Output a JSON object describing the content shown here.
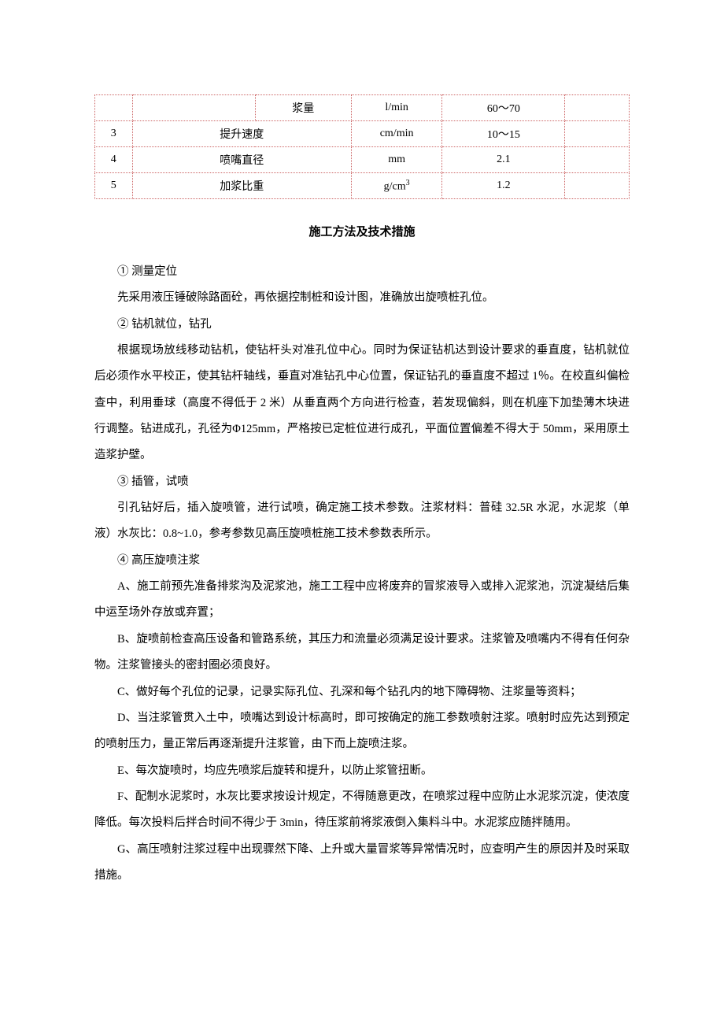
{
  "table": {
    "rows": [
      {
        "seq": "",
        "name": "",
        "sub": "浆量",
        "unit": "l/min",
        "value": "60～70",
        "note": ""
      },
      {
        "seq": "3",
        "name": "提升速度",
        "sub": "",
        "unit": "cm/min",
        "value": "10～15",
        "note": ""
      },
      {
        "seq": "4",
        "name": "喷嘴直径",
        "sub": "",
        "unit": "mm",
        "value": "2.1",
        "note": ""
      },
      {
        "seq": "5",
        "name": "加浆比重",
        "sub": "",
        "unit": "g/cm³",
        "value": "1.2",
        "note": ""
      }
    ],
    "border_color": "#cc6666",
    "col_widths_pct": [
      7,
      23,
      18,
      17,
      23,
      12
    ],
    "font_size_pt": 10.5
  },
  "section_title": "施工方法及技术措施",
  "paragraphs": [
    "① 测量定位",
    "先采用液压锤破除路面砼，再依据控制桩和设计图，准确放出旋喷桩孔位。",
    "② 钻机就位，钻孔",
    "根据现场放线移动钻机，使钻杆头对准孔位中心。同时为保证钻机达到设计要求的垂直度，钻机就位后必须作水平校正，使其钻杆轴线，垂直对准钻孔中心位置，保证钻孔的垂直度不超过 1％。在校直纠偏检查中，利用垂球（高度不得低于 2 米）从垂直两个方向进行检查，若发现偏斜，则在机座下加垫薄木块进行调整。钻进成孔，孔径为Φ125mm，严格按已定桩位进行成孔，平面位置偏差不得大于 50mm，采用原土造浆护壁。",
    "③ 插管，试喷",
    "引孔钻好后，插入旋喷管，进行试喷，确定施工技术参数。注浆材料：普硅 32.5R 水泥，水泥浆（单液）水灰比：0.8~1.0，参考参数见高压旋喷桩施工技术参数表所示。",
    "④ 高压旋喷注浆",
    "A、施工前预先准备排浆沟及泥浆池，施工工程中应将废弃的冒浆液导入或排入泥浆池，沉淀凝结后集中运至场外存放或弃置；",
    "B、旋喷前检查高压设备和管路系统，其压力和流量必须满足设计要求。注浆管及喷嘴内不得有任何杂物。注浆管接头的密封圈必须良好。",
    "C、做好每个孔位的记录，记录实际孔位、孔深和每个钻孔内的地下障碍物、注浆量等资料；",
    "D、当注浆管贯入土中，喷嘴达到设计标高时，即可按确定的施工参数喷射注浆。喷射时应先达到预定的喷射压力，量正常后再逐渐提升注浆管，由下而上旋喷注浆。",
    "E、每次旋喷时，均应先喷浆后旋转和提升，以防止浆管扭断。",
    "F、配制水泥浆时，水灰比要求按设计规定，不得随意更改，在喷浆过程中应防止水泥浆沉淀，使浓度降低。每次投料后拌合时间不得少于 3min，待压浆前将浆液倒入集料斗中。水泥浆应随拌随用。",
    "G、高压喷射注浆过程中出现骤然下降、上升或大量冒浆等异常情况时，应查明产生的原因并及时采取措施。"
  ],
  "body_font_size_pt": 11,
  "line_height": 2.3,
  "text_color": "#000000",
  "background_color": "#ffffff"
}
